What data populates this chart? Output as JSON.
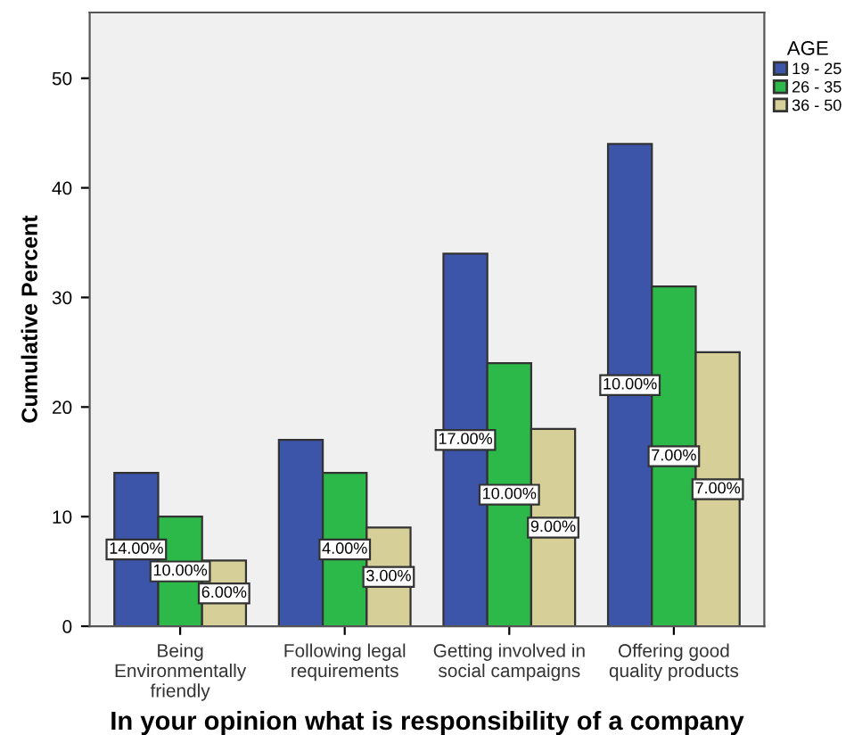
{
  "chart_data": {
    "type": "bar",
    "xlabel": "In your opinion what is responsibility of a company",
    "ylabel": "Cumulative Percent",
    "legend_title": "AGE",
    "categories": [
      "Being\nEnvironmentally\nfriendly",
      "Following legal\nrequirements",
      "Getting involved in\nsocial campaigns",
      "Offering good\nquality products"
    ],
    "series": [
      {
        "name": "19 - 25",
        "color": "#3d55a8",
        "values": [
          14,
          17,
          34,
          44
        ]
      },
      {
        "name": "26 - 35",
        "color": "#2db84a",
        "values": [
          10,
          14,
          24,
          31
        ]
      },
      {
        "name": "36 - 50",
        "color": "#d6cf98",
        "values": [
          6,
          9,
          18,
          25
        ]
      }
    ],
    "annotations": [
      "14.00%",
      "10.00%",
      "6.00%",
      "4.00%",
      "3.00%",
      "17.00%",
      "10.00%",
      "9.00%",
      "10.00%",
      "7.00%",
      "7.00%"
    ],
    "ylim": [
      0,
      56
    ],
    "yticks": [
      0,
      10,
      20,
      30,
      40,
      50
    ],
    "grid": false,
    "legend": "top right"
  }
}
